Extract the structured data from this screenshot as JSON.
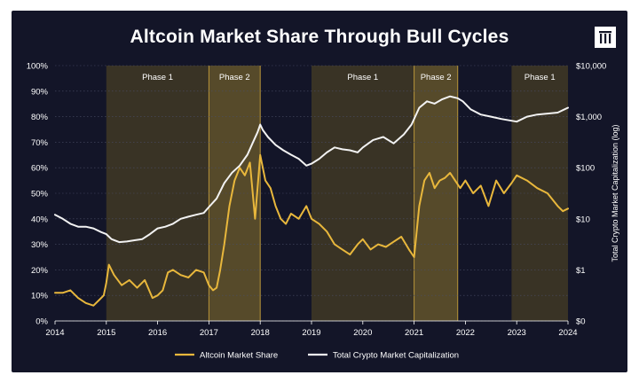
{
  "chart_data": {
    "type": "line",
    "title": "Altcoin Market Share Through Bull Cycles",
    "xlabel": "",
    "ylabel_left": "",
    "ylabel_right": "Total Crypto Market Capitalization (log)",
    "x_ticks": [
      "2014",
      "2015",
      "2016",
      "2017",
      "2018",
      "2019",
      "2020",
      "2021",
      "2022",
      "2023",
      "2024"
    ],
    "y_left_ticks": [
      "0%",
      "10%",
      "20%",
      "30%",
      "40%",
      "50%",
      "60%",
      "70%",
      "80%",
      "90%",
      "100%"
    ],
    "y_right_ticks": [
      "$0",
      "$1",
      "$10",
      "$100",
      "$1,000",
      "$10,000"
    ],
    "xlim": [
      2014,
      2024
    ],
    "ylim_left": [
      0,
      100
    ],
    "ylim_right_log10": [
      -1,
      4
    ],
    "grid": true,
    "legend_position": "bottom-center",
    "colors": {
      "altcoin": "#e8b73c",
      "total": "#f2f2f2",
      "phase1_fill": "#3b3525",
      "phase2_fill": "#5a4d2a",
      "phase_border": "#b8953a"
    },
    "phases": [
      {
        "label": "Phase 1",
        "start": 2015.0,
        "end": 2017.0,
        "kind": "phase1"
      },
      {
        "label": "Phase 2",
        "start": 2017.0,
        "end": 2018.0,
        "kind": "phase2"
      },
      {
        "label": "Phase 1",
        "start": 2019.0,
        "end": 2021.0,
        "kind": "phase1"
      },
      {
        "label": "Phase 2",
        "start": 2021.0,
        "end": 2021.85,
        "kind": "phase2"
      },
      {
        "label": "Phase 1",
        "start": 2022.9,
        "end": 2024.0,
        "kind": "phase1"
      }
    ],
    "series": [
      {
        "name": "Altcoin Market Share",
        "axis": "left",
        "x": [
          2014.0,
          2014.15,
          2014.3,
          2014.45,
          2014.6,
          2014.75,
          2014.85,
          2014.95,
          2015.0,
          2015.05,
          2015.15,
          2015.3,
          2015.45,
          2015.6,
          2015.75,
          2015.9,
          2016.0,
          2016.1,
          2016.2,
          2016.3,
          2016.45,
          2016.6,
          2016.75,
          2016.9,
          2017.0,
          2017.08,
          2017.15,
          2017.22,
          2017.3,
          2017.4,
          2017.5,
          2017.6,
          2017.7,
          2017.8,
          2017.9,
          2018.0,
          2018.1,
          2018.2,
          2018.3,
          2018.4,
          2018.5,
          2018.6,
          2018.75,
          2018.9,
          2019.0,
          2019.15,
          2019.3,
          2019.45,
          2019.6,
          2019.75,
          2019.9,
          2020.0,
          2020.15,
          2020.3,
          2020.45,
          2020.6,
          2020.75,
          2020.9,
          2021.0,
          2021.05,
          2021.1,
          2021.2,
          2021.3,
          2021.4,
          2021.5,
          2021.6,
          2021.7,
          2021.8,
          2021.9,
          2022.0,
          2022.15,
          2022.3,
          2022.45,
          2022.6,
          2022.75,
          2022.9,
          2023.0,
          2023.2,
          2023.4,
          2023.6,
          2023.8,
          2023.9,
          2024.0
        ],
        "values": [
          11,
          11,
          12,
          9,
          7,
          6,
          8,
          10,
          15,
          22,
          18,
          14,
          16,
          13,
          16,
          9,
          10,
          12,
          19,
          20,
          18,
          17,
          20,
          19,
          14,
          12,
          13,
          20,
          30,
          45,
          55,
          60,
          57,
          62,
          40,
          65,
          55,
          52,
          45,
          40,
          38,
          42,
          40,
          45,
          40,
          38,
          35,
          30,
          28,
          26,
          30,
          32,
          28,
          30,
          29,
          31,
          33,
          28,
          25,
          35,
          45,
          55,
          58,
          52,
          55,
          56,
          58,
          55,
          52,
          55,
          50,
          53,
          45,
          55,
          50,
          54,
          57,
          55,
          52,
          50,
          45,
          43,
          44
        ]
      },
      {
        "name": "Total Crypto Market Capitalization",
        "axis": "right",
        "x": [
          2014.0,
          2014.15,
          2014.3,
          2014.45,
          2014.6,
          2014.75,
          2014.9,
          2015.0,
          2015.1,
          2015.25,
          2015.4,
          2015.55,
          2015.7,
          2015.85,
          2016.0,
          2016.15,
          2016.3,
          2016.45,
          2016.6,
          2016.75,
          2016.9,
          2017.0,
          2017.15,
          2017.3,
          2017.45,
          2017.6,
          2017.75,
          2017.85,
          2017.95,
          2018.0,
          2018.05,
          2018.15,
          2018.3,
          2018.45,
          2018.6,
          2018.75,
          2018.9,
          2019.0,
          2019.15,
          2019.3,
          2019.45,
          2019.6,
          2019.75,
          2019.9,
          2020.0,
          2020.2,
          2020.4,
          2020.6,
          2020.8,
          2020.95,
          2021.1,
          2021.25,
          2021.4,
          2021.55,
          2021.7,
          2021.85,
          2021.95,
          2022.1,
          2022.3,
          2022.5,
          2022.7,
          2022.85,
          2023.0,
          2023.2,
          2023.4,
          2023.6,
          2023.8,
          2024.0
        ],
        "values": [
          12,
          10,
          8,
          7,
          7,
          6.5,
          5.5,
          5,
          4,
          3.5,
          3.6,
          3.8,
          4,
          5,
          6.5,
          7,
          8,
          10,
          11,
          12,
          13,
          17,
          25,
          50,
          80,
          110,
          180,
          300,
          500,
          700,
          550,
          400,
          280,
          220,
          180,
          150,
          110,
          120,
          150,
          200,
          250,
          230,
          220,
          200,
          250,
          350,
          400,
          300,
          450,
          700,
          1500,
          2000,
          1800,
          2200,
          2500,
          2300,
          2000,
          1400,
          1100,
          1000,
          900,
          850,
          800,
          1000,
          1100,
          1150,
          1200,
          1500
        ]
      }
    ]
  }
}
